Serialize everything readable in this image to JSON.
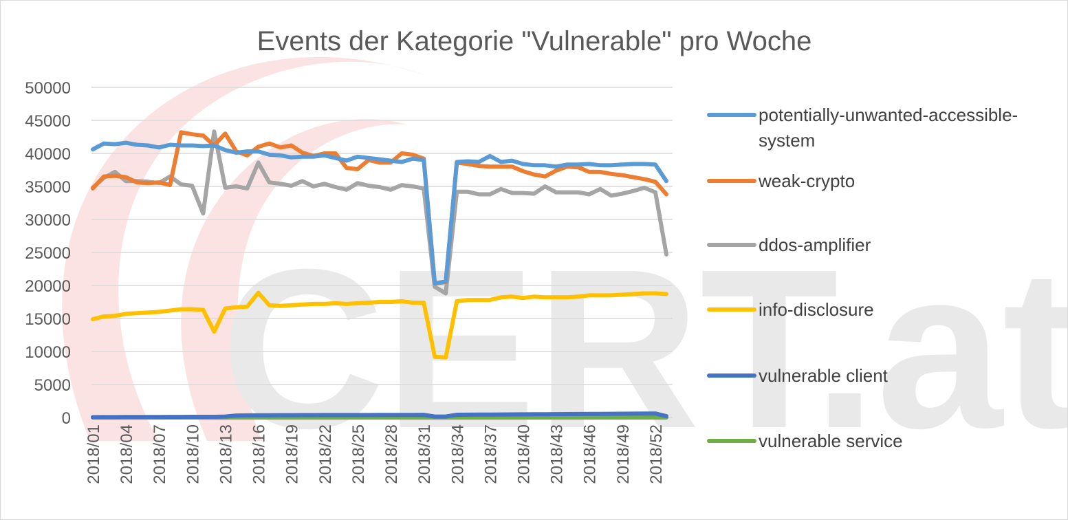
{
  "chart_data": {
    "type": "line",
    "title": "Events der Kategorie \"Vulnerable\" pro Woche",
    "xlabel": "",
    "ylabel": "",
    "ylim": [
      0,
      50000
    ],
    "yticks": [
      0,
      5000,
      10000,
      15000,
      20000,
      25000,
      30000,
      35000,
      40000,
      45000,
      50000
    ],
    "ytick_labels": [
      "0",
      "5000",
      "10000",
      "15000",
      "20000",
      "25000",
      "30000",
      "35000",
      "40000",
      "45000",
      "50000"
    ],
    "x": [
      "2018/01",
      "2018/02",
      "2018/03",
      "2018/04",
      "2018/05",
      "2018/06",
      "2018/07",
      "2018/08",
      "2018/09",
      "2018/10",
      "2018/11",
      "2018/12",
      "2018/13",
      "2018/14",
      "2018/15",
      "2018/16",
      "2018/17",
      "2018/18",
      "2018/19",
      "2018/20",
      "2018/21",
      "2018/22",
      "2018/23",
      "2018/24",
      "2018/25",
      "2018/26",
      "2018/27",
      "2018/28",
      "2018/29",
      "2018/30",
      "2018/31",
      "2018/32",
      "2018/33",
      "2018/34",
      "2018/35",
      "2018/36",
      "2018/37",
      "2018/38",
      "2018/39",
      "2018/40",
      "2018/41",
      "2018/42",
      "2018/43",
      "2018/44",
      "2018/45",
      "2018/46",
      "2018/47",
      "2018/48",
      "2018/49",
      "2018/50",
      "2018/51",
      "2018/52",
      "2018/53"
    ],
    "x_tick_labels": [
      "2018/01",
      "2018/04",
      "2018/07",
      "2018/10",
      "2018/13",
      "2018/16",
      "2018/19",
      "2018/22",
      "2018/25",
      "2018/28",
      "2018/31",
      "2018/34",
      "2018/37",
      "2018/40",
      "2018/43",
      "2018/46",
      "2018/49",
      "2018/52"
    ],
    "grid": true,
    "legend_position": "right",
    "series": [
      {
        "name": "potentially-unwanted-accessible-system",
        "color": "#5B9BD5",
        "values": [
          40600,
          41500,
          41400,
          41600,
          41300,
          41200,
          40900,
          41300,
          41200,
          41200,
          41100,
          41200,
          40500,
          40100,
          40300,
          40300,
          39800,
          39700,
          39400,
          39500,
          39500,
          39700,
          39300,
          38900,
          39500,
          39300,
          39100,
          38900,
          38700,
          39200,
          39000,
          20300,
          20600,
          38700,
          38800,
          38700,
          39600,
          38700,
          38900,
          38400,
          38200,
          38200,
          38000,
          38300,
          38300,
          38400,
          38200,
          38200,
          38300,
          38400,
          38400,
          38300,
          35800
        ]
      },
      {
        "name": "weak-crypto",
        "color": "#ED7D31",
        "values": [
          34700,
          36500,
          36600,
          36400,
          35600,
          35500,
          35600,
          35200,
          43200,
          42900,
          42700,
          41200,
          43000,
          40300,
          39700,
          41000,
          41500,
          40900,
          41200,
          40100,
          39600,
          40000,
          40000,
          37800,
          37600,
          39000,
          38600,
          38600,
          40000,
          39800,
          39200,
          20300,
          20500,
          38600,
          38400,
          38100,
          38000,
          38000,
          38000,
          37300,
          36800,
          36500,
          37400,
          38000,
          37900,
          37200,
          37200,
          36900,
          36700,
          36400,
          36100,
          35700,
          33800
        ]
      },
      {
        "name": "ddos-amplifier",
        "color": "#A5A5A5",
        "values": [
          34800,
          36300,
          37200,
          35800,
          35800,
          35700,
          35500,
          36500,
          35300,
          35100,
          30900,
          43300,
          34800,
          35000,
          34700,
          38600,
          35600,
          35400,
          35100,
          35800,
          35000,
          35400,
          34900,
          34500,
          35500,
          35100,
          34900,
          34500,
          35200,
          35000,
          34700,
          19800,
          18800,
          34200,
          34200,
          33800,
          33800,
          34600,
          34000,
          34000,
          33900,
          35000,
          34100,
          34100,
          34100,
          33800,
          34600,
          33600,
          33900,
          34300,
          34800,
          34100,
          24700
        ]
      },
      {
        "name": "info-disclosure",
        "color": "#FFC000",
        "values": [
          14900,
          15300,
          15400,
          15700,
          15800,
          15900,
          16000,
          16200,
          16400,
          16400,
          16300,
          13000,
          16500,
          16700,
          16800,
          18900,
          17000,
          16900,
          17000,
          17100,
          17200,
          17200,
          17300,
          17200,
          17300,
          17400,
          17500,
          17500,
          17600,
          17400,
          17400,
          9200,
          9100,
          17600,
          17800,
          17800,
          17800,
          18200,
          18300,
          18100,
          18300,
          18200,
          18200,
          18200,
          18300,
          18500,
          18500,
          18500,
          18600,
          18700,
          18800,
          18800,
          18700
        ]
      },
      {
        "name": "vulnerable client",
        "color": "#4472C4",
        "values": [
          50,
          60,
          60,
          70,
          70,
          80,
          80,
          90,
          90,
          100,
          100,
          100,
          150,
          300,
          320,
          330,
          340,
          350,
          350,
          360,
          360,
          370,
          370,
          370,
          380,
          380,
          390,
          390,
          400,
          400,
          410,
          150,
          150,
          420,
          430,
          440,
          450,
          460,
          470,
          480,
          490,
          500,
          510,
          520,
          530,
          540,
          550,
          560,
          570,
          580,
          590,
          600,
          200
        ]
      },
      {
        "name": "vulnerable service",
        "color": "#70AD47",
        "values": [
          0,
          0,
          0,
          0,
          0,
          0,
          0,
          0,
          0,
          0,
          0,
          0,
          0,
          0,
          0,
          0,
          0,
          0,
          0,
          0,
          0,
          0,
          0,
          0,
          0,
          0,
          0,
          0,
          0,
          0,
          0,
          0,
          0,
          0,
          0,
          0,
          0,
          0,
          0,
          0,
          0,
          0,
          0,
          0,
          0,
          0,
          0,
          0,
          0,
          0,
          0,
          0,
          0
        ]
      }
    ]
  },
  "watermark": {
    "text": "CERT.at",
    "color": "#e9e9e9",
    "swirl_color": "#fbe3e3"
  }
}
